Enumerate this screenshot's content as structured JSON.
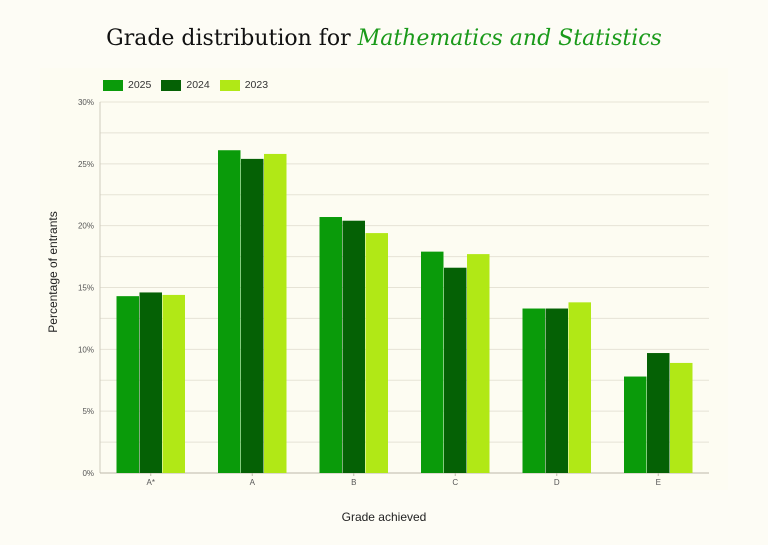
{
  "title": {
    "prefix": "Grade distribution for",
    "subject": "Mathematics and Statistics"
  },
  "chart_data": {
    "type": "bar",
    "categories": [
      "A*",
      "A",
      "B",
      "C",
      "D",
      "E"
    ],
    "series": [
      {
        "name": "2025",
        "color": "#0a9b0a",
        "values": [
          14.3,
          26.1,
          20.7,
          17.9,
          13.3,
          7.8
        ]
      },
      {
        "name": "2024",
        "color": "#056105",
        "values": [
          14.6,
          25.4,
          20.4,
          16.6,
          13.3,
          9.7
        ]
      },
      {
        "name": "2023",
        "color": "#b1e816",
        "values": [
          14.4,
          25.8,
          19.4,
          17.7,
          13.8,
          8.9
        ]
      }
    ],
    "xlabel": "Grade achieved",
    "ylabel": "Percentage of entrants",
    "ylim": [
      0,
      30
    ],
    "yticks": [
      "0%",
      "5%",
      "10%",
      "15%",
      "20%",
      "25%",
      "30%"
    ],
    "grid": true,
    "legend_position": "top-left"
  }
}
